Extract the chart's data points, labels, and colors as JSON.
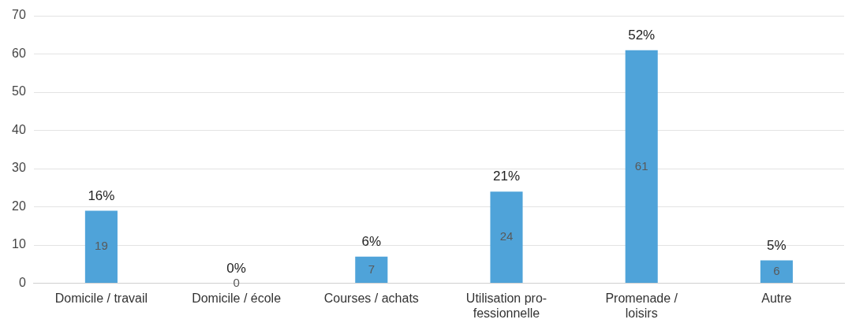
{
  "chart_data": {
    "type": "bar",
    "categories": [
      "Domicile / travail",
      "Domicile / école",
      "Courses / achats",
      "Utilisation pro-fessionnelle",
      "Promenade / loisirs",
      "Autre"
    ],
    "values": [
      19,
      0,
      7,
      24,
      61,
      6
    ],
    "color": "#4fa3d9",
    "data_labels": true,
    "annotations": [
      {
        "text": "16%",
        "x": "Domicile / travail",
        "y": 19
      },
      {
        "text": "0%",
        "x": "Domicile / école",
        "y": 0
      },
      {
        "text": "6%",
        "x": "Courses / achats",
        "y": 7
      },
      {
        "text": "21%",
        "x": "Utilisation pro-fessionnelle",
        "y": 24
      },
      {
        "text": "52%",
        "x": "Promenade / loisirs",
        "y": 61
      },
      {
        "text": "5%",
        "x": "Autre",
        "y": 6
      }
    ],
    "ylim": [
      0,
      70
    ],
    "yticks": [
      0,
      10,
      20,
      30,
      40,
      50,
      60,
      70
    ],
    "grid": "y"
  }
}
